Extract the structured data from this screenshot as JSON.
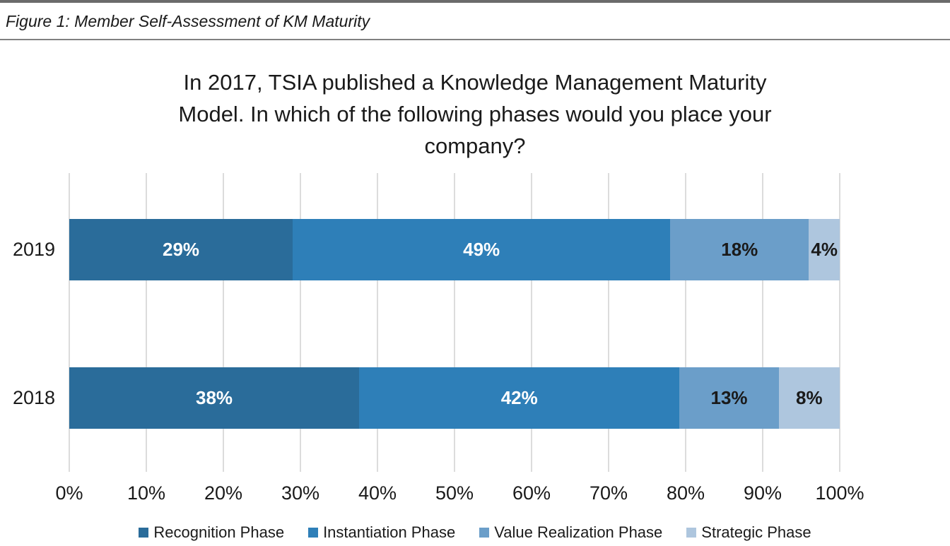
{
  "figure_caption": "Figure 1: Member Self-Assessment of KM Maturity",
  "chart_data": {
    "type": "bar",
    "variant": "horizontal-stacked",
    "title": "In 2017, TSIA published a Knowledge Management Maturity Model. In which of the following phases would you place your company?",
    "title_lines": [
      "In 2017, TSIA published a Knowledge Management Maturity",
      "Model. In which of the following phases would you place your",
      "company?"
    ],
    "categories": [
      "2019",
      "2018"
    ],
    "series": [
      {
        "name": "Recognition Phase",
        "values": [
          29,
          38
        ],
        "color": "#2a6c9a",
        "label_color": "#ffffff"
      },
      {
        "name": "Instantiation Phase",
        "values": [
          49,
          42
        ],
        "color": "#2e7fb8",
        "label_color": "#ffffff"
      },
      {
        "name": "Value Realization Phase",
        "values": [
          18,
          13
        ],
        "color": "#6b9ec9",
        "label_color": "#1a1a1a"
      },
      {
        "name": "Strategic Phase",
        "values": [
          4,
          8
        ],
        "color": "#aec6de",
        "label_color": "#1a1a1a"
      }
    ],
    "data_label_suffix": "%",
    "x_ticks": [
      "0%",
      "10%",
      "20%",
      "30%",
      "40%",
      "50%",
      "60%",
      "70%",
      "80%",
      "90%",
      "100%"
    ],
    "xlim": [
      0,
      100
    ],
    "grid": "vertical",
    "gridline_color": "#dcdcdc",
    "legend_position": "bottom"
  }
}
